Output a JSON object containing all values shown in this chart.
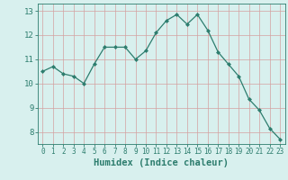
{
  "x": [
    0,
    1,
    2,
    3,
    4,
    5,
    6,
    7,
    8,
    9,
    10,
    11,
    12,
    13,
    14,
    15,
    16,
    17,
    18,
    19,
    20,
    21,
    22,
    23
  ],
  "y": [
    10.5,
    10.7,
    10.4,
    10.3,
    10.0,
    10.8,
    11.5,
    11.5,
    11.5,
    11.0,
    11.35,
    12.1,
    12.6,
    12.85,
    12.45,
    12.85,
    12.2,
    11.3,
    10.8,
    10.3,
    9.35,
    8.9,
    8.15,
    7.7
  ],
  "line_color": "#2d7d6e",
  "marker": "D",
  "marker_size": 2.0,
  "bg_color": "#d8f0ee",
  "grid_color": "#c0dbd8",
  "xlabel": "Humidex (Indice chaleur)",
  "ylim": [
    7.5,
    13.3
  ],
  "xlim": [
    -0.5,
    23.5
  ],
  "yticks": [
    8,
    9,
    10,
    11,
    12,
    13
  ],
  "xticks": [
    0,
    1,
    2,
    3,
    4,
    5,
    6,
    7,
    8,
    9,
    10,
    11,
    12,
    13,
    14,
    15,
    16,
    17,
    18,
    19,
    20,
    21,
    22,
    23
  ],
  "tick_color": "#2d7d6e",
  "label_color": "#2d7d6e",
  "tick_fontsize": 5.5,
  "ytick_fontsize": 6.5,
  "xlabel_fontsize": 7.5
}
